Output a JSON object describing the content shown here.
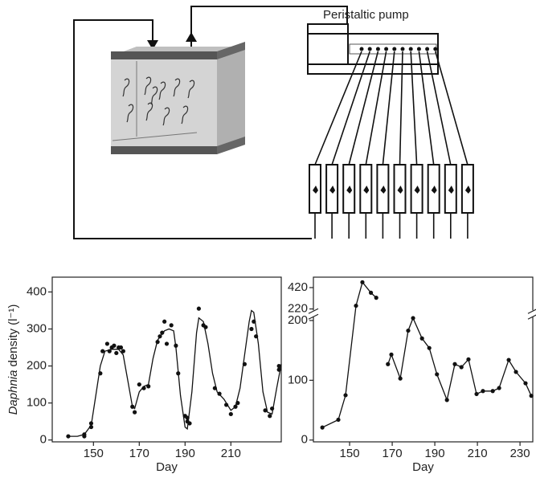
{
  "diagram": {
    "pump_label": "Peristaltic pump"
  },
  "chart_data": [
    {
      "type": "line",
      "xlabel": "Day",
      "ylabel_species": "Daphnia",
      "ylabel_rest": "density (l⁻¹)",
      "xlim": [
        132,
        232
      ],
      "ylim": [
        -5,
        440
      ],
      "xticks": [
        150,
        170,
        190,
        210
      ],
      "yticks": [
        0,
        100,
        200,
        300,
        400
      ],
      "series": [
        {
          "color": "#111111",
          "marker": true,
          "line": false,
          "x": [
            139,
            146,
            146,
            149,
            149,
            153,
            154,
            156,
            157,
            158,
            159,
            160,
            161,
            162,
            163,
            167,
            168,
            170,
            172,
            174,
            178,
            179,
            180,
            181,
            182,
            184,
            186,
            187,
            190,
            191,
            191,
            192,
            196,
            198,
            199,
            203,
            205,
            208,
            210,
            212,
            213,
            216,
            219,
            220,
            221,
            225,
            227,
            228,
            231,
            231
          ],
          "values": [
            10,
            10,
            15,
            35,
            45,
            180,
            240,
            260,
            240,
            250,
            255,
            235,
            250,
            250,
            240,
            90,
            75,
            150,
            140,
            145,
            265,
            280,
            290,
            320,
            260,
            310,
            255,
            180,
            65,
            50,
            60,
            45,
            355,
            310,
            305,
            140,
            125,
            95,
            70,
            90,
            100,
            205,
            300,
            320,
            280,
            80,
            65,
            85,
            200,
            190
          ]
        },
        {
          "color": "#111111",
          "marker": false,
          "line": true,
          "x": [
            139,
            143,
            146,
            149,
            151,
            153,
            155,
            158,
            161,
            163,
            165,
            167,
            168,
            170,
            172,
            174,
            176,
            178,
            181,
            183,
            185,
            186,
            188,
            190,
            191,
            193,
            195,
            196,
            198,
            200,
            202,
            204,
            207,
            210,
            212,
            214,
            216,
            218,
            219,
            220,
            222,
            224,
            226,
            228,
            230,
            232
          ],
          "values": [
            10,
            10,
            15,
            40,
            120,
            200,
            240,
            245,
            245,
            230,
            160,
            90,
            85,
            130,
            145,
            150,
            220,
            270,
            295,
            300,
            295,
            250,
            120,
            35,
            30,
            130,
            290,
            330,
            320,
            260,
            180,
            130,
            110,
            80,
            90,
            140,
            230,
            320,
            350,
            345,
            260,
            130,
            75,
            70,
            140,
            205
          ]
        }
      ]
    },
    {
      "type": "line",
      "xlabel": "Day",
      "xlim": [
        133,
        236
      ],
      "ylim": [
        -3,
        480
      ],
      "y_break": [
        205,
        215
      ],
      "xticks": [
        150,
        170,
        190,
        210,
        230
      ],
      "yticks": [
        0,
        100,
        200,
        220,
        420
      ],
      "series": [
        {
          "color": "#111111",
          "marker": true,
          "line": true,
          "x": [
            137.2,
            144.7,
            148.1,
            153,
            156,
            160,
            162.5,
            165,
            168,
            169.6,
            173.8,
            177.5,
            179.8,
            184,
            187.4,
            191,
            195.7,
            199.4,
            202.5,
            205.8,
            209.6,
            212.6,
            217.2,
            220.2,
            224.7,
            228.1,
            232.6,
            235.3
          ],
          "values": [
            21,
            34,
            75,
            250,
            470,
            372,
            325,
            null,
            127,
            143,
            103,
            183,
            204,
            170,
            154,
            110,
            67,
            127,
            122,
            135,
            77,
            82,
            82,
            87,
            134,
            114,
            95,
            74
          ]
        }
      ]
    }
  ]
}
